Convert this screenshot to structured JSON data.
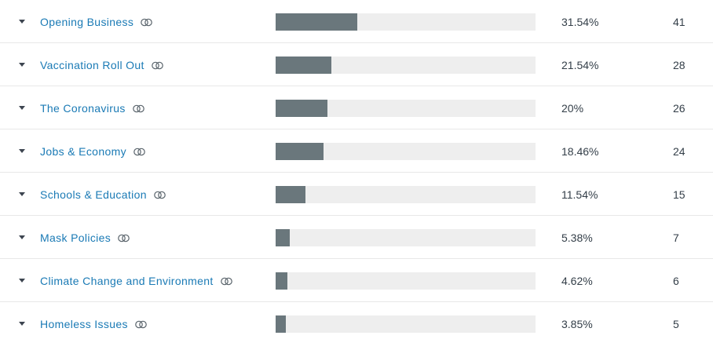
{
  "rows": [
    {
      "label": "Opening Business",
      "percent": "31.54%",
      "count": "41",
      "fraction": 0.3154,
      "icon": "link-rings-icon"
    },
    {
      "label": "Vaccination Roll Out",
      "percent": "21.54%",
      "count": "28",
      "fraction": 0.2154,
      "icon": "link-rings-icon"
    },
    {
      "label": "The Coronavirus",
      "percent": "20%",
      "count": "26",
      "fraction": 0.2,
      "icon": "link-rings-icon"
    },
    {
      "label": "Jobs & Economy",
      "percent": "18.46%",
      "count": "24",
      "fraction": 0.1846,
      "icon": "link-rings-icon"
    },
    {
      "label": "Schools & Education",
      "percent": "11.54%",
      "count": "15",
      "fraction": 0.1154,
      "icon": "link-rings-icon"
    },
    {
      "label": "Mask Policies",
      "percent": "5.38%",
      "count": "7",
      "fraction": 0.0538,
      "icon": "link-rings-icon"
    },
    {
      "label": "Climate Change and Environment",
      "percent": "4.62%",
      "count": "6",
      "fraction": 0.0462,
      "icon": "link-rings-icon"
    },
    {
      "label": "Homeless Issues",
      "percent": "3.85%",
      "count": "5",
      "fraction": 0.0385,
      "icon": "link-rings-icon"
    }
  ],
  "colors": {
    "label": "#1a7ab5",
    "bar_fill": "#6a777c",
    "bar_track": "#eeeeee",
    "text": "#333e48"
  }
}
